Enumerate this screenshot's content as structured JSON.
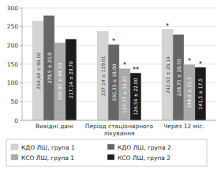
{
  "chart_data": {
    "type": "bar",
    "categories": [
      "Вихідні дані",
      "Період стаціонарного\nлікування",
      "Через 12 міс."
    ],
    "series": [
      {
        "name": "КДО ЛШ, група 1",
        "color": "#d4d4d4",
        "values": [
          264.4,
          237.14,
          242.63
        ],
        "value_labels": [
          "264,40 ± 86,02",
          "237,14 ± 119,01",
          "242,63 ± 26,14"
        ],
        "annotations": [
          null,
          null,
          "*"
        ]
      },
      {
        "name": "КДО ЛШ, група 2",
        "color": "#666666",
        "values": [
          279.5,
          202.33,
          228.75
        ],
        "value_labels": [
          "279,5 ± 23,0",
          "202,33 ± 18,00",
          "228,75 ± 20,50"
        ],
        "annotations": [
          null,
          "*",
          null
        ]
      },
      {
        "name": "КСО ЛШ, група 1",
        "color": "#aaaaaa",
        "values": [
          206.87,
          137.77,
          148.6
        ],
        "value_labels": [
          "206,87 ± 84,10",
          "137,77 ± 33,21",
          "148,6 ± 21,3"
        ],
        "annotations": [
          null,
          "*",
          "*"
        ]
      },
      {
        "name": "КСО ЛШ, група 2",
        "color": "#1c1c1c",
        "values": [
          217.14,
          126.54,
          141.5
        ],
        "value_labels": [
          "217,14 ± 20,70",
          "126,54 ± 22,00",
          "141,5 ± 17,5"
        ],
        "annotations": [
          null,
          "**",
          "*"
        ]
      }
    ],
    "ylim": [
      0,
      300
    ],
    "yticks": [
      0,
      50,
      100,
      150,
      200,
      250,
      300
    ],
    "grid": true,
    "data_labels": true,
    "legend": "bottom"
  }
}
